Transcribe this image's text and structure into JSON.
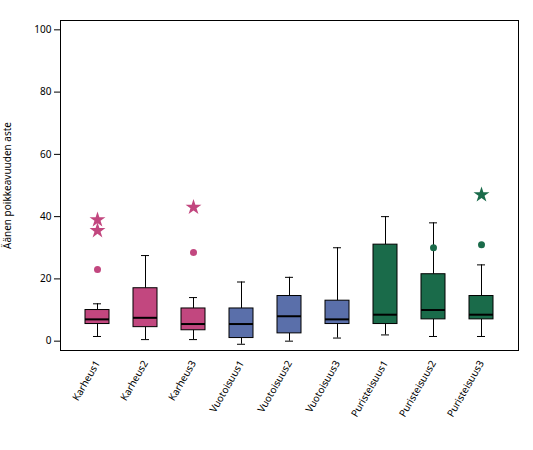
{
  "chart_data": {
    "type": "box",
    "categories": [
      "Karheus1",
      "Karheus2",
      "Karheus3",
      "Vuotoisuus1",
      "Vuotoisuus2",
      "Vuotoisuus3",
      "Puristeisuus1",
      "Puristeisuus2",
      "Puristeisuus3"
    ],
    "colors": [
      "#c2477f",
      "#c2477f",
      "#c2477f",
      "#5a6faa",
      "#5a6faa",
      "#5a6faa",
      "#1a6b4a",
      "#1a6b4a",
      "#1a6b4a"
    ],
    "boxes": [
      {
        "q1": 5.5,
        "median": 7.0,
        "q3": 10.0,
        "whislo": 1.5,
        "whishi": 12.0
      },
      {
        "q1": 4.5,
        "median": 7.5,
        "q3": 17.0,
        "whislo": 0.5,
        "whishi": 27.5
      },
      {
        "q1": 3.5,
        "median": 5.5,
        "q3": 10.5,
        "whislo": 0.5,
        "whishi": 14.0
      },
      {
        "q1": 1.0,
        "median": 5.5,
        "q3": 10.5,
        "whislo": -1.0,
        "whishi": 19.0
      },
      {
        "q1": 2.5,
        "median": 8.0,
        "q3": 14.5,
        "whislo": 0.0,
        "whishi": 20.5
      },
      {
        "q1": 5.5,
        "median": 7.0,
        "q3": 13.0,
        "whislo": 1.0,
        "whishi": 30.0
      },
      {
        "q1": 5.5,
        "median": 8.5,
        "q3": 31.0,
        "whislo": 2.0,
        "whishi": 40.0
      },
      {
        "q1": 7.0,
        "median": 10.0,
        "q3": 21.5,
        "whislo": 1.5,
        "whishi": 38.0
      },
      {
        "q1": 7.0,
        "median": 8.5,
        "q3": 14.5,
        "whislo": 1.5,
        "whishi": 24.5
      }
    ],
    "outliers": [
      {
        "category": "Karheus1",
        "values": [
          23.0
        ],
        "marker": "circle"
      },
      {
        "category": "Karheus1",
        "values": [
          39.0,
          35.5
        ],
        "marker": "star"
      },
      {
        "category": "Karheus3",
        "values": [
          28.5
        ],
        "marker": "circle"
      },
      {
        "category": "Karheus3",
        "values": [
          43.0
        ],
        "marker": "star"
      },
      {
        "category": "Puristeisuus2",
        "values": [
          30.0
        ],
        "marker": "circle"
      },
      {
        "category": "Puristeisuus3",
        "values": [
          31.0
        ],
        "marker": "circle"
      },
      {
        "category": "Puristeisuus3",
        "values": [
          47.0
        ],
        "marker": "star"
      }
    ],
    "ylabel": "Äänen poikkeavuuden aste",
    "ylim": [
      -3,
      103
    ],
    "yticks": [
      0,
      20,
      40,
      60,
      80,
      100
    ],
    "grid": false
  }
}
